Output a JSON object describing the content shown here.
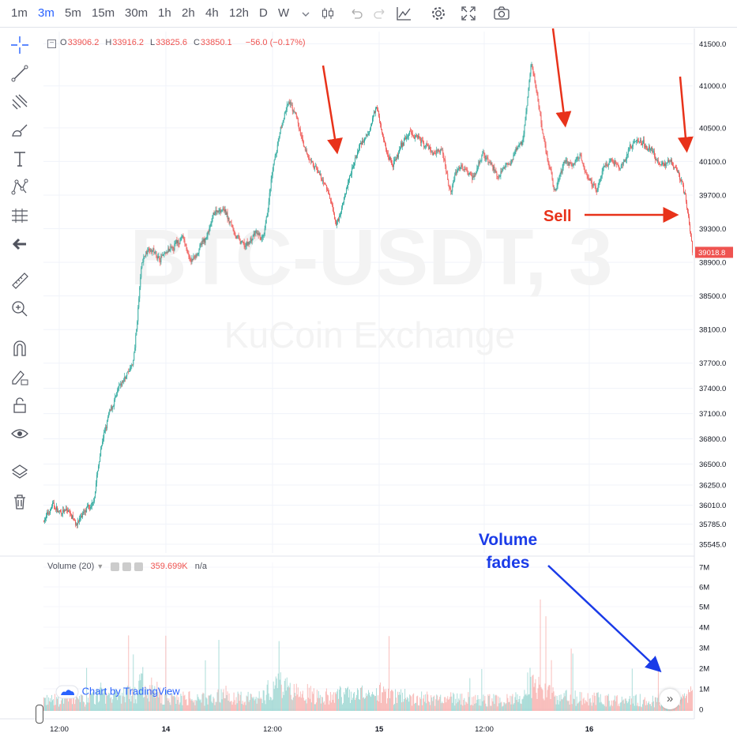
{
  "toolbar": {
    "timeframes": [
      "1m",
      "3m",
      "5m",
      "15m",
      "30m",
      "1h",
      "2h",
      "4h",
      "12h",
      "D",
      "W"
    ],
    "active_timeframe": "3m",
    "icons": [
      "chevron-down-icon",
      "candles-icon",
      "undo-icon",
      "redo-icon",
      "line-chart-icon",
      "gear-icon",
      "fullscreen-icon",
      "camera-icon"
    ]
  },
  "sidebar": {
    "icons": [
      "crosshair-icon",
      "trend-line-icon",
      "pitchfork-icon",
      "brush-icon",
      "text-icon",
      "pattern-icon",
      "prediction-icon",
      "back-arrow-icon",
      "ruler-icon",
      "zoom-icon",
      "magnet-icon",
      "lock-drawing-icon",
      "lock-icon",
      "eye-icon",
      "layers-icon",
      "trash-icon"
    ]
  },
  "legend": {
    "ohlc": [
      {
        "key": "O",
        "value": "33906.2"
      },
      {
        "key": "H",
        "value": "33916.2"
      },
      {
        "key": "L",
        "value": "33825.6"
      },
      {
        "key": "C",
        "value": "33850.1"
      }
    ],
    "change": "−56.0 (−0.17%)"
  },
  "volume_legend": {
    "label": "Volume (20)",
    "value": "359.699K",
    "ma": "n/a"
  },
  "watermark": {
    "symbol": "BTC-USDT, 3",
    "exchange": "KuCoin Exchange"
  },
  "branding": {
    "tradingview": "Chart by TradingView"
  },
  "scroll_button": "»",
  "colors": {
    "up": "#26a69a",
    "down": "#ef5350",
    "annotation_red": "#e8321a",
    "annotation_blue": "#1a3be8",
    "accent": "#2962ff"
  },
  "chart_data": {
    "type": "candlestick",
    "symbol": "BTC-USDT",
    "interval": "3m",
    "price_axis": {
      "ticks": [
        "41500.0",
        "41000.0",
        "40500.0",
        "40100.0",
        "39700.0",
        "39300.0",
        "38900.0",
        "38500.0",
        "38100.0",
        "37700.0",
        "37400.0",
        "37100.0",
        "36800.0",
        "36500.0",
        "36250.0",
        "36010.0",
        "35785.0",
        "35545.0"
      ],
      "last_price": "39018.8"
    },
    "volume_axis": {
      "ticks": [
        "7M",
        "6M",
        "5M",
        "4M",
        "3M",
        "2M",
        "1M",
        "0"
      ]
    },
    "time_axis": {
      "ticks": [
        "12:00",
        "14",
        "12:00",
        "15",
        "12:00",
        "16"
      ]
    },
    "price_path": [
      [
        0,
        35820
      ],
      [
        1,
        36030
      ],
      [
        2,
        35900
      ],
      [
        3,
        35950
      ],
      [
        4,
        35790
      ],
      [
        5,
        35950
      ],
      [
        6,
        36020
      ],
      [
        7,
        36700
      ],
      [
        8,
        37100
      ],
      [
        9,
        37350
      ],
      [
        10,
        37550
      ],
      [
        11,
        37700
      ],
      [
        12,
        38900
      ],
      [
        13,
        39100
      ],
      [
        14,
        38950
      ],
      [
        15,
        39000
      ],
      [
        16,
        39100
      ],
      [
        17,
        39200
      ],
      [
        18,
        38900
      ],
      [
        19,
        39050
      ],
      [
        20,
        39200
      ],
      [
        21,
        39500
      ],
      [
        22,
        39550
      ],
      [
        23,
        39350
      ],
      [
        24,
        39150
      ],
      [
        25,
        39100
      ],
      [
        26,
        39250
      ],
      [
        27,
        39150
      ],
      [
        28,
        39900
      ],
      [
        29,
        40450
      ],
      [
        30,
        40800
      ],
      [
        31,
        40650
      ],
      [
        32,
        40250
      ],
      [
        33,
        40100
      ],
      [
        34,
        39900
      ],
      [
        35,
        39750
      ],
      [
        36,
        39350
      ],
      [
        37,
        39700
      ],
      [
        38,
        40050
      ],
      [
        39,
        40300
      ],
      [
        40,
        40450
      ],
      [
        41,
        40800
      ],
      [
        42,
        40250
      ],
      [
        43,
        40050
      ],
      [
        44,
        40300
      ],
      [
        45,
        40450
      ],
      [
        46,
        40400
      ],
      [
        47,
        40300
      ],
      [
        48,
        40200
      ],
      [
        49,
        40250
      ],
      [
        50,
        39750
      ],
      [
        51,
        40050
      ],
      [
        52,
        40000
      ],
      [
        53,
        39900
      ],
      [
        54,
        40200
      ],
      [
        55,
        40050
      ],
      [
        56,
        39900
      ],
      [
        57,
        40050
      ],
      [
        58,
        40200
      ],
      [
        59,
        40350
      ],
      [
        60,
        41300
      ],
      [
        61,
        40700
      ],
      [
        62,
        40100
      ],
      [
        63,
        39750
      ],
      [
        64,
        40100
      ],
      [
        65,
        40050
      ],
      [
        66,
        40200
      ],
      [
        67,
        39900
      ],
      [
        68,
        39750
      ],
      [
        69,
        40050
      ],
      [
        70,
        40100
      ],
      [
        71,
        40000
      ],
      [
        72,
        40250
      ],
      [
        73,
        40350
      ],
      [
        74,
        40300
      ],
      [
        75,
        40200
      ],
      [
        76,
        40050
      ],
      [
        77,
        40100
      ],
      [
        78,
        40000
      ],
      [
        79,
        39700
      ],
      [
        80,
        38900
      ]
    ],
    "volume_profile": [
      0.3,
      0.3,
      0.3,
      0.35,
      0.3,
      0.3,
      0.35,
      0.5,
      0.45,
      0.4,
      0.45,
      0.45,
      0.8,
      0.6,
      0.45,
      0.4,
      0.35,
      0.35,
      0.35,
      0.3,
      0.35,
      0.4,
      0.45,
      0.4,
      0.35,
      0.35,
      0.35,
      0.4,
      0.7,
      0.75,
      0.6,
      0.5,
      0.5,
      0.45,
      0.4,
      0.4,
      0.5,
      0.45,
      0.4,
      0.45,
      0.45,
      0.5,
      0.45,
      0.4,
      0.4,
      0.35,
      0.35,
      0.35,
      0.35,
      0.3,
      0.35,
      0.35,
      0.35,
      0.3,
      0.3,
      0.3,
      0.3,
      0.3,
      0.35,
      0.4,
      0.9,
      0.6,
      0.5,
      0.45,
      0.4,
      0.4,
      0.35,
      0.35,
      0.35,
      0.3,
      0.3,
      0.3,
      0.3,
      0.3,
      0.25,
      0.25,
      0.25,
      0.25,
      0.3,
      0.4,
      0.55
    ],
    "annotations": {
      "sell": "Sell",
      "volume_fades": [
        "Volume",
        "fades"
      ]
    }
  }
}
